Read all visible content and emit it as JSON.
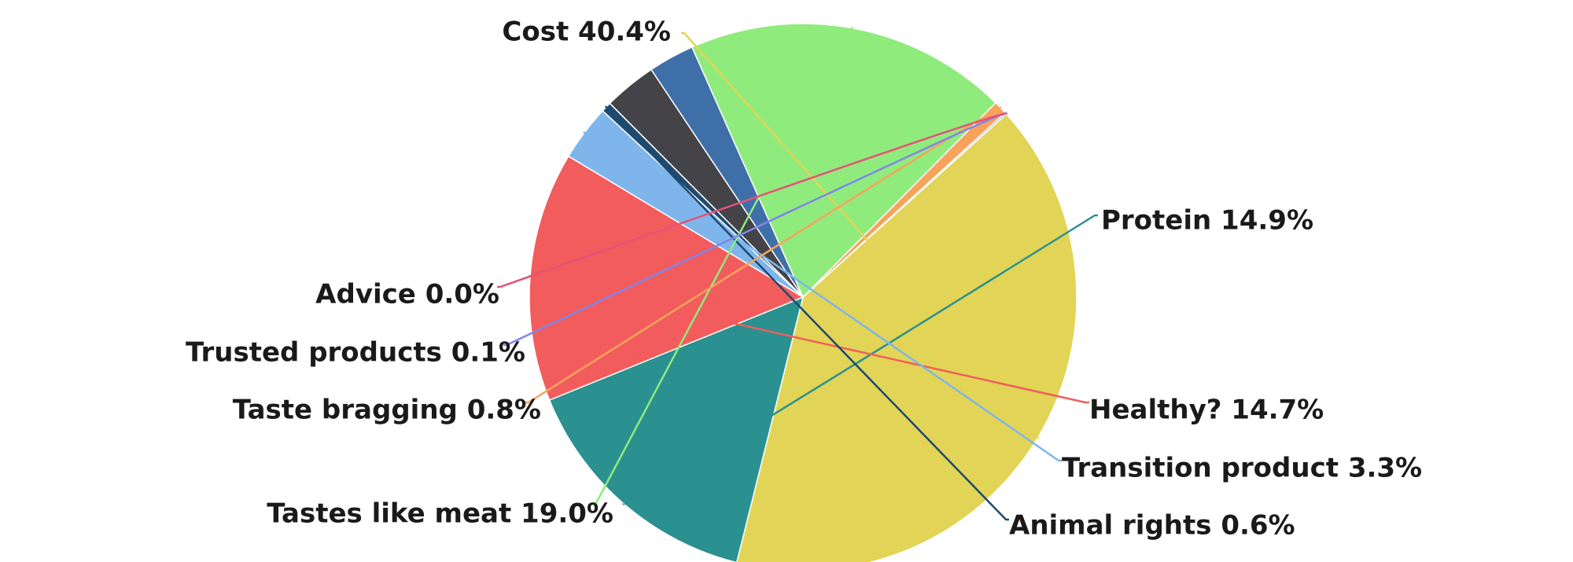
{
  "chart_data": {
    "type": "pie",
    "title": "",
    "slices": [
      {
        "label": "Cost",
        "value": 40.4,
        "display": "Cost 40.4%",
        "color": "#E2D456"
      },
      {
        "label": "Protein",
        "value": 14.9,
        "display": "Protein 14.9%",
        "color": "#2A9190"
      },
      {
        "label": "Healthy?",
        "value": 14.7,
        "display": "Healthy? 14.7%",
        "color": "#F25C5C"
      },
      {
        "label": "Transition product",
        "value": 3.3,
        "display": "Transition product 3.3%",
        "color": "#7EB6EC"
      },
      {
        "label": "Animal rights",
        "value": 0.6,
        "display": "Animal rights 0.6%",
        "color": "#1E4A72"
      },
      {
        "label": "",
        "value": 3.1,
        "display": "",
        "color": "#434348"
      },
      {
        "label": "",
        "value": 2.7,
        "display": "",
        "color": "#3F6FA8"
      },
      {
        "label": "Tastes like meat",
        "value": 19.0,
        "display": "Tastes like meat 19.0%",
        "color": "#90EB7D"
      },
      {
        "label": "Taste bragging",
        "value": 0.8,
        "display": "Taste bragging 0.8%",
        "color": "#F7A35C"
      },
      {
        "label": "Trusted products",
        "value": 0.1,
        "display": "Trusted products 0.1%",
        "color": "#8085E9"
      },
      {
        "label": "Advice",
        "value": 0.0,
        "display": "Advice 0.0%",
        "color": "#E6527A"
      }
    ],
    "legend": "none"
  }
}
